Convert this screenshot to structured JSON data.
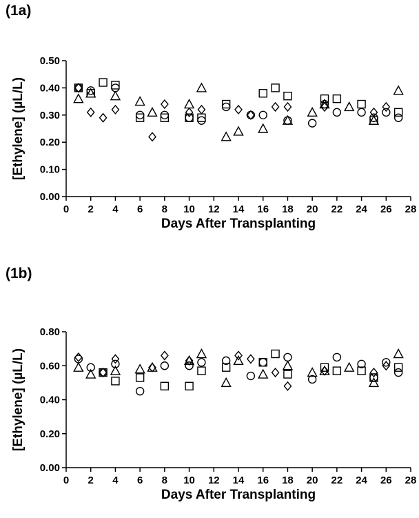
{
  "chart_data": [
    {
      "panel": "(1a)",
      "type": "scatter",
      "xlabel": "Days After Transplanting",
      "ylabel": "[Ethylene] (µL/L)",
      "xlim": [
        0,
        28
      ],
      "ylim": [
        0,
        0.5
      ],
      "xticks": [
        "0",
        "2",
        "4",
        "6",
        "8",
        "10",
        "12",
        "14",
        "16",
        "18",
        "20",
        "22",
        "24",
        "26",
        "28"
      ],
      "yticks": [
        "0.00",
        "0.10",
        "0.20",
        "0.30",
        "0.40",
        "0.50"
      ],
      "grid": false,
      "series": [
        {
          "marker": "circle",
          "x": [
            1,
            2,
            4,
            6,
            8,
            10,
            11,
            13,
            15,
            16,
            18,
            20,
            21,
            22,
            24,
            25,
            26,
            27
          ],
          "y": [
            0.4,
            0.39,
            0.4,
            0.3,
            0.3,
            0.29,
            0.28,
            0.33,
            0.3,
            0.3,
            0.28,
            0.27,
            0.34,
            0.31,
            0.31,
            0.29,
            0.31,
            0.29
          ]
        },
        {
          "marker": "square",
          "x": [
            1,
            2,
            3,
            4,
            6,
            8,
            10,
            11,
            13,
            16,
            17,
            18,
            21,
            22,
            24,
            25,
            27
          ],
          "y": [
            0.4,
            0.38,
            0.42,
            0.41,
            0.29,
            0.29,
            0.29,
            0.29,
            0.34,
            0.38,
            0.4,
            0.37,
            0.36,
            0.36,
            0.34,
            0.28,
            0.31
          ]
        },
        {
          "marker": "triangle",
          "x": [
            1,
            2,
            4,
            6,
            7,
            10,
            11,
            13,
            14,
            16,
            18,
            20,
            21,
            23,
            25,
            27
          ],
          "y": [
            0.36,
            0.38,
            0.37,
            0.35,
            0.31,
            0.34,
            0.4,
            0.22,
            0.24,
            0.25,
            0.28,
            0.31,
            0.34,
            0.33,
            0.28,
            0.39
          ]
        },
        {
          "marker": "diamond",
          "x": [
            1,
            2,
            3,
            4,
            7,
            8,
            10,
            11,
            14,
            15,
            17,
            18,
            21,
            25,
            26
          ],
          "y": [
            0.4,
            0.31,
            0.29,
            0.32,
            0.22,
            0.34,
            0.31,
            0.32,
            0.32,
            0.3,
            0.33,
            0.33,
            0.33,
            0.31,
            0.33
          ]
        }
      ]
    },
    {
      "panel": "(1b)",
      "type": "scatter",
      "xlabel": "Days After Transplanting",
      "ylabel": "[Ethylene] (µL/L)",
      "xlim": [
        0,
        28
      ],
      "ylim": [
        0,
        0.8
      ],
      "xticks": [
        "0",
        "2",
        "4",
        "6",
        "8",
        "10",
        "12",
        "14",
        "16",
        "18",
        "20",
        "22",
        "24",
        "26",
        "28"
      ],
      "yticks": [
        "0.00",
        "0.20",
        "0.40",
        "0.60",
        "0.80"
      ],
      "grid": false,
      "series": [
        {
          "marker": "circle",
          "x": [
            1,
            2,
            3,
            4,
            6,
            8,
            10,
            11,
            13,
            15,
            16,
            18,
            20,
            22,
            24,
            25,
            26,
            27
          ],
          "y": [
            0.64,
            0.59,
            0.56,
            0.61,
            0.45,
            0.6,
            0.6,
            0.62,
            0.63,
            0.54,
            0.62,
            0.65,
            0.52,
            0.65,
            0.61,
            0.53,
            0.62,
            0.56
          ]
        },
        {
          "marker": "square",
          "x": [
            3,
            4,
            6,
            8,
            10,
            11,
            13,
            16,
            17,
            18,
            21,
            22,
            24,
            25,
            27
          ],
          "y": [
            0.56,
            0.51,
            0.53,
            0.48,
            0.48,
            0.57,
            0.59,
            0.62,
            0.67,
            0.55,
            0.59,
            0.57,
            0.57,
            0.53,
            0.59
          ]
        },
        {
          "marker": "triangle",
          "x": [
            1,
            2,
            4,
            6,
            7,
            10,
            11,
            13,
            14,
            16,
            18,
            20,
            21,
            23,
            25,
            27
          ],
          "y": [
            0.59,
            0.55,
            0.57,
            0.58,
            0.59,
            0.63,
            0.67,
            0.5,
            0.63,
            0.55,
            0.6,
            0.56,
            0.57,
            0.59,
            0.5,
            0.67
          ]
        },
        {
          "marker": "diamond",
          "x": [
            1,
            3,
            4,
            7,
            8,
            10,
            14,
            15,
            17,
            18,
            21,
            25,
            26
          ],
          "y": [
            0.65,
            0.56,
            0.64,
            0.59,
            0.66,
            0.63,
            0.66,
            0.64,
            0.56,
            0.48,
            0.57,
            0.56,
            0.6
          ]
        }
      ]
    }
  ]
}
